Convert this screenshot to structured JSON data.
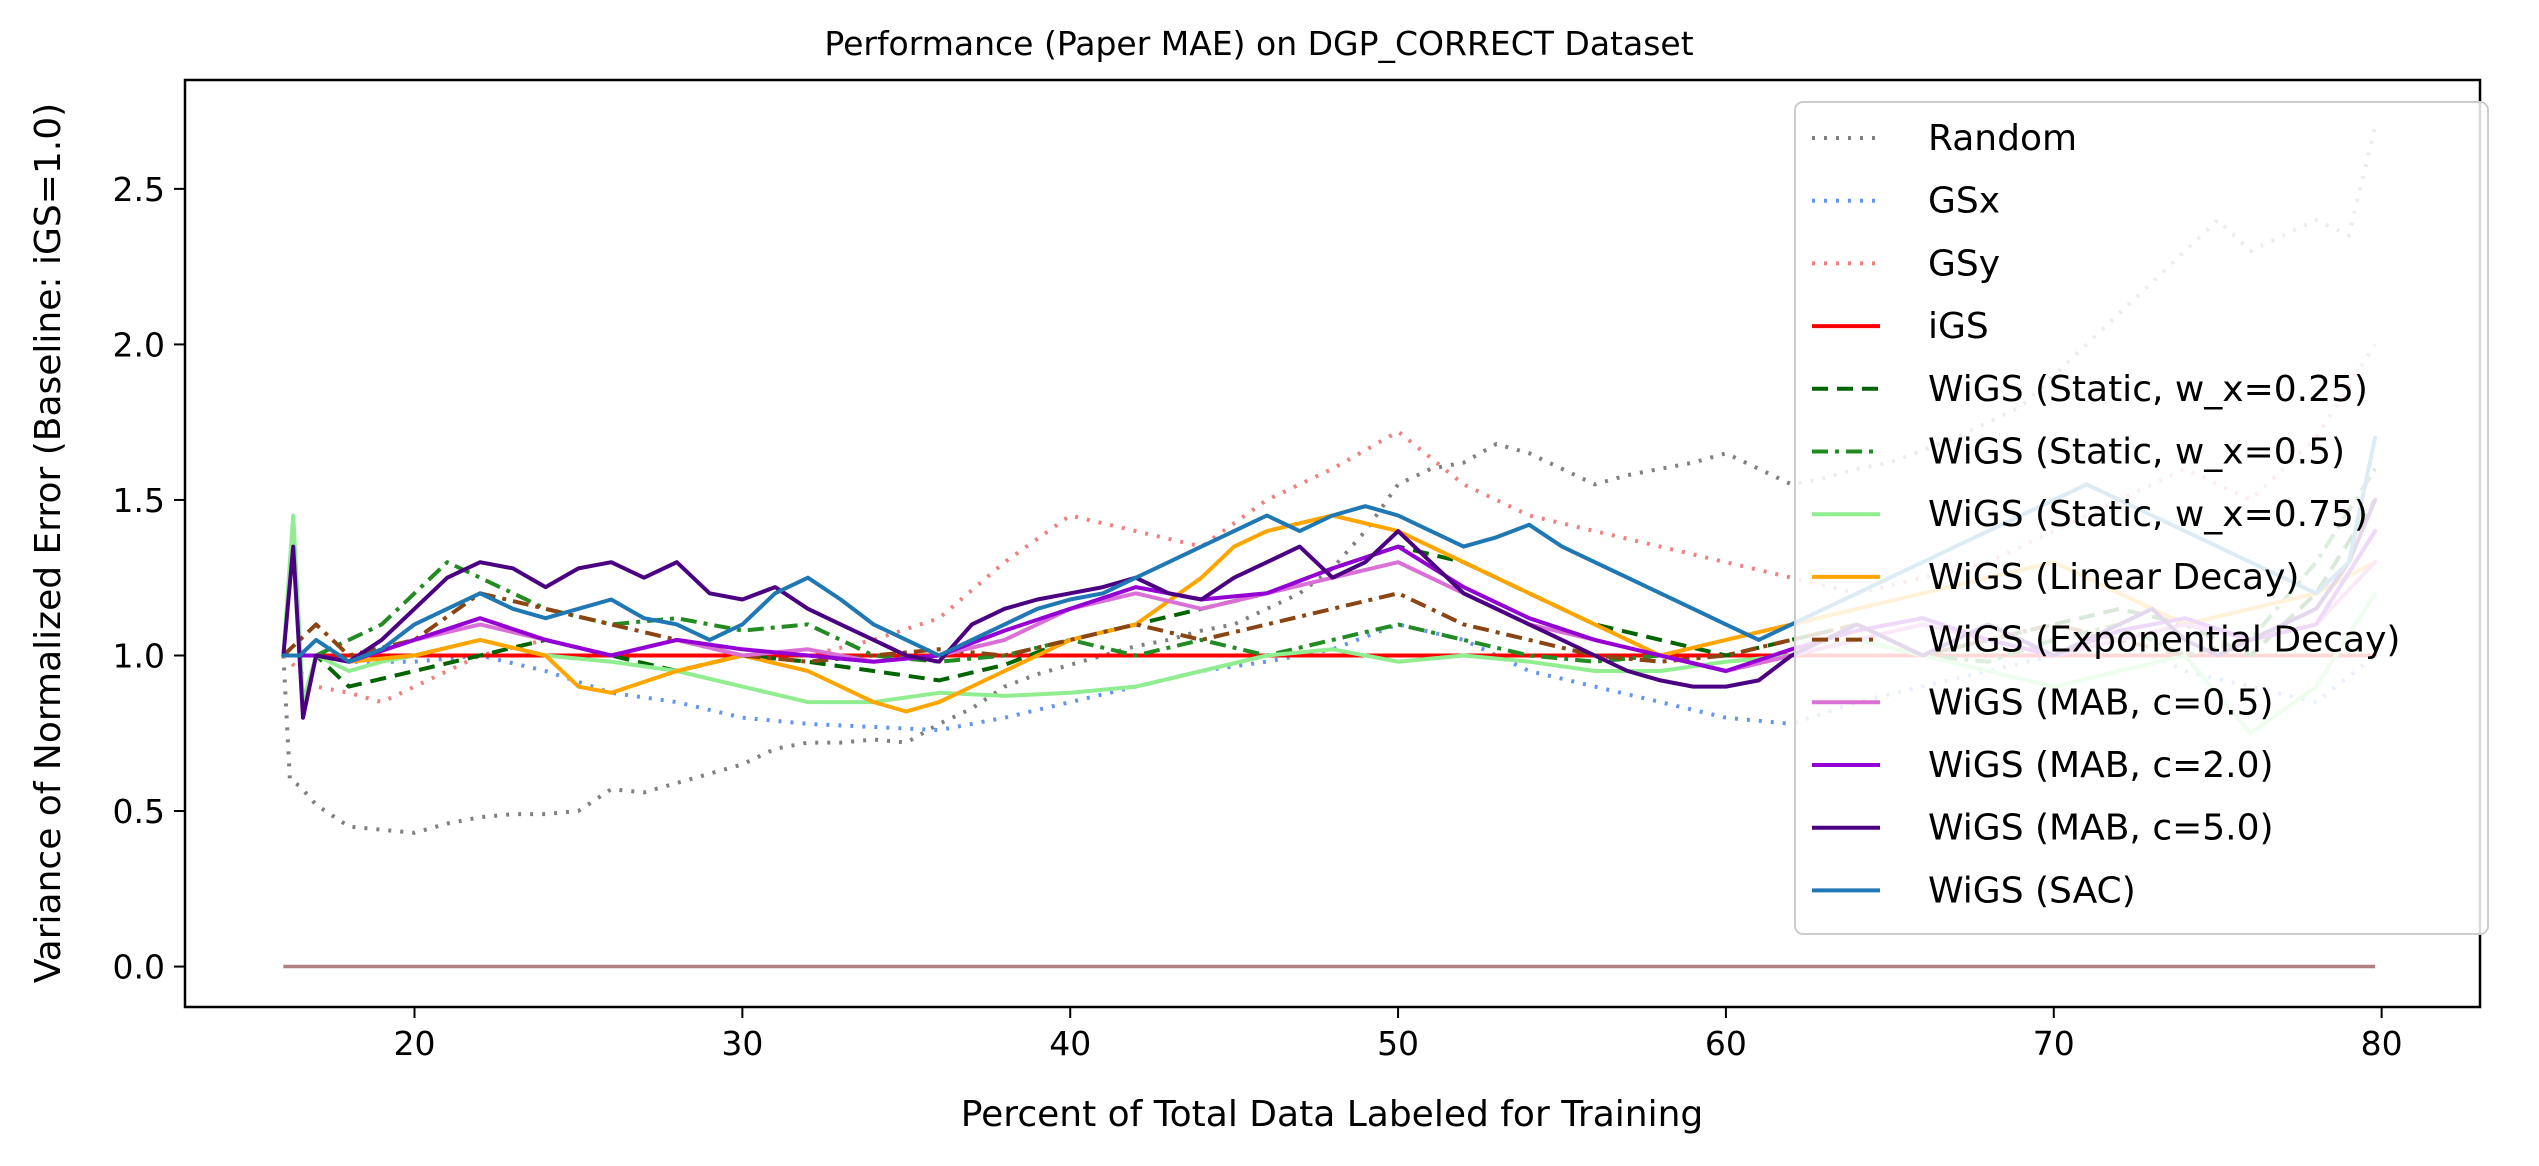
{
  "chart_data": {
    "type": "line",
    "title": "Performance (Paper MAE) on DGP_CORRECT Dataset",
    "xlabel": "Percent of Total Data Labeled for Training",
    "ylabel": "Variance of Normalized Error (Baseline: iGS=1.0)",
    "xlim": [
      13,
      83
    ],
    "ylim": [
      -0.13,
      2.85
    ],
    "xticks": [
      20,
      30,
      40,
      50,
      60,
      70,
      80
    ],
    "yticks": [
      0.0,
      0.5,
      1.0,
      1.5,
      2.0,
      2.5
    ],
    "xtick_labels": [
      "20",
      "30",
      "40",
      "50",
      "60",
      "70",
      "80"
    ],
    "ytick_labels": [
      "0.0",
      "0.5",
      "1.0",
      "1.5",
      "2.0",
      "2.5"
    ],
    "grid": false,
    "legend_position": "upper right",
    "series": [
      {
        "name": "Random",
        "color": "#808080",
        "dash": "dotted",
        "x": [
          16,
          16.2,
          16.5,
          17,
          18,
          19,
          20,
          21,
          22,
          23,
          24,
          25,
          26,
          27,
          28,
          29,
          30,
          31,
          32,
          33,
          34,
          35,
          36,
          37,
          38,
          39,
          40,
          41,
          42,
          43,
          44,
          45,
          46,
          47,
          48,
          49,
          50,
          51,
          52,
          53,
          54,
          55,
          56,
          57,
          58,
          59,
          60,
          61,
          62,
          63,
          64,
          65,
          66,
          67,
          68,
          69,
          70,
          71,
          72,
          73,
          74,
          75,
          76,
          77,
          78,
          79,
          79.8
        ],
        "y": [
          1.0,
          0.6,
          0.58,
          0.52,
          0.45,
          0.44,
          0.43,
          0.46,
          0.48,
          0.49,
          0.49,
          0.5,
          0.57,
          0.56,
          0.59,
          0.62,
          0.65,
          0.7,
          0.72,
          0.72,
          0.73,
          0.72,
          0.78,
          0.83,
          0.9,
          0.94,
          0.97,
          1.0,
          1.03,
          1.05,
          1.08,
          1.1,
          1.15,
          1.2,
          1.28,
          1.4,
          1.55,
          1.6,
          1.62,
          1.68,
          1.65,
          1.6,
          1.55,
          1.58,
          1.6,
          1.62,
          1.65,
          1.6,
          1.55,
          1.57,
          1.6,
          1.62,
          1.66,
          1.7,
          1.75,
          1.8,
          1.9,
          2.0,
          2.1,
          2.2,
          2.3,
          2.4,
          2.3,
          2.35,
          2.4,
          2.35,
          2.7
        ]
      },
      {
        "name": "GSx",
        "color": "#6495ed",
        "dash": "dotted",
        "x": [
          16,
          17,
          18,
          20,
          22,
          24,
          26,
          28,
          30,
          32,
          34,
          36,
          38,
          40,
          42,
          44,
          46,
          48,
          50,
          52,
          54,
          56,
          58,
          60,
          62,
          64,
          66,
          68,
          70,
          72,
          74,
          76,
          78,
          79.8
        ],
        "y": [
          1.0,
          1.0,
          0.98,
          0.98,
          1.0,
          0.95,
          0.88,
          0.85,
          0.8,
          0.78,
          0.77,
          0.76,
          0.8,
          0.85,
          0.9,
          0.95,
          0.98,
          1.02,
          1.1,
          1.05,
          0.95,
          0.9,
          0.85,
          0.8,
          0.78,
          0.85,
          0.9,
          0.95,
          1.0,
          1.05,
          0.95,
          0.9,
          0.85,
          1.0
        ]
      },
      {
        "name": "GSy",
        "color": "#f08080",
        "dash": "dotted",
        "x": [
          16,
          17,
          18,
          19,
          20,
          22,
          24,
          26,
          28,
          30,
          32,
          34,
          36,
          38,
          40,
          42,
          44,
          46,
          48,
          50,
          52,
          54,
          56,
          58,
          60,
          62,
          64,
          66,
          68,
          70,
          72,
          74,
          76,
          78,
          79.8
        ],
        "y": [
          1.0,
          0.9,
          0.88,
          0.85,
          0.9,
          1.0,
          1.05,
          1.0,
          1.05,
          1.02,
          1.0,
          1.05,
          1.12,
          1.3,
          1.45,
          1.4,
          1.35,
          1.5,
          1.6,
          1.72,
          1.55,
          1.45,
          1.4,
          1.35,
          1.3,
          1.25,
          1.2,
          1.25,
          1.3,
          1.4,
          1.5,
          1.6,
          1.5,
          1.7,
          2.0
        ]
      },
      {
        "name": "iGS",
        "color": "#ff0000",
        "dash": "solid",
        "x": [
          16,
          79.8
        ],
        "y": [
          1.0,
          1.0
        ]
      },
      {
        "name": "WiGS (Static, w_x=0.25)",
        "color": "#006400",
        "dash": "dashed",
        "x": [
          16,
          17,
          18,
          20,
          22,
          24,
          26,
          28,
          30,
          32,
          34,
          36,
          38,
          40,
          42,
          44,
          46,
          48,
          50,
          52,
          54,
          56,
          58,
          60,
          62,
          64,
          66,
          68,
          70,
          72,
          74,
          76,
          78,
          79.8
        ],
        "y": [
          1.0,
          1.0,
          0.9,
          0.95,
          1.0,
          1.05,
          1.0,
          0.95,
          1.0,
          0.98,
          0.95,
          0.92,
          0.97,
          1.05,
          1.1,
          1.15,
          1.2,
          1.28,
          1.35,
          1.3,
          1.2,
          1.1,
          1.05,
          1.0,
          1.05,
          1.1,
          1.0,
          1.05,
          1.1,
          1.15,
          1.1,
          1.0,
          1.2,
          1.5
        ]
      },
      {
        "name": "WiGS (Static, w_x=0.5)",
        "color": "#228b22",
        "dash": "dashdot",
        "x": [
          16,
          17,
          18,
          19,
          20,
          21,
          22,
          24,
          26,
          28,
          30,
          32,
          34,
          36,
          38,
          40,
          42,
          44,
          46,
          48,
          50,
          52,
          54,
          56,
          58,
          60,
          62,
          64,
          66,
          68,
          70,
          72,
          74,
          76,
          78,
          79.8
        ],
        "y": [
          1.0,
          1.0,
          1.05,
          1.1,
          1.2,
          1.3,
          1.25,
          1.15,
          1.1,
          1.12,
          1.08,
          1.1,
          1.0,
          0.98,
          1.0,
          1.05,
          1.0,
          1.05,
          1.0,
          1.05,
          1.1,
          1.05,
          1.0,
          0.98,
          1.0,
          0.95,
          1.0,
          1.05,
          1.0,
          0.98,
          1.05,
          1.1,
          1.0,
          1.05,
          1.3,
          1.6
        ]
      },
      {
        "name": "WiGS (Static, w_x=0.75)",
        "color": "#90ee90",
        "dash": "solid",
        "x": [
          16,
          16.3,
          16.6,
          17,
          18,
          19,
          20,
          22,
          24,
          26,
          28,
          30,
          32,
          34,
          36,
          38,
          40,
          42,
          44,
          46,
          48,
          50,
          52,
          54,
          56,
          58,
          60,
          62,
          64,
          66,
          68,
          70,
          72,
          74,
          76,
          78,
          79.8
        ],
        "y": [
          1.0,
          1.45,
          0.85,
          1.0,
          0.95,
          0.98,
          1.0,
          1.05,
          1.0,
          0.98,
          0.95,
          0.9,
          0.85,
          0.85,
          0.88,
          0.87,
          0.88,
          0.9,
          0.95,
          1.0,
          1.02,
          0.98,
          1.0,
          0.98,
          0.95,
          0.95,
          0.98,
          1.0,
          1.05,
          1.0,
          0.95,
          0.9,
          0.95,
          1.0,
          0.75,
          0.9,
          1.2
        ]
      },
      {
        "name": "WiGS (Linear Decay)",
        "color": "#ffa500",
        "dash": "solid",
        "x": [
          16,
          17,
          18,
          20,
          22,
          24,
          25,
          26,
          28,
          30,
          32,
          34,
          35,
          36,
          38,
          40,
          42,
          44,
          45,
          46,
          48,
          50,
          52,
          54,
          56,
          58,
          60,
          62,
          64,
          66,
          68,
          70,
          72,
          74,
          76,
          78,
          79.8
        ],
        "y": [
          1.0,
          1.0,
          0.98,
          1.0,
          1.05,
          1.0,
          0.9,
          0.88,
          0.95,
          1.0,
          0.95,
          0.85,
          0.82,
          0.85,
          0.95,
          1.05,
          1.1,
          1.25,
          1.35,
          1.4,
          1.45,
          1.4,
          1.3,
          1.2,
          1.1,
          1.0,
          1.05,
          1.1,
          1.15,
          1.2,
          1.25,
          1.3,
          1.2,
          1.1,
          1.15,
          1.2,
          1.3
        ]
      },
      {
        "name": "WiGS (Exponential Decay)",
        "color": "#8b4513",
        "dash": "dashdot",
        "x": [
          16,
          17,
          18,
          20,
          22,
          24,
          26,
          28,
          30,
          32,
          34,
          36,
          38,
          40,
          42,
          44,
          46,
          48,
          50,
          52,
          54,
          56,
          58,
          60,
          62,
          64,
          66,
          68,
          70,
          72,
          74,
          76,
          78,
          79.8
        ],
        "y": [
          1.0,
          1.1,
          1.0,
          1.05,
          1.2,
          1.15,
          1.1,
          1.05,
          1.0,
          0.98,
          1.0,
          1.02,
          1.0,
          1.05,
          1.1,
          1.05,
          1.1,
          1.15,
          1.2,
          1.1,
          1.05,
          1.0,
          0.98,
          1.0,
          1.05,
          1.1,
          1.0,
          1.05,
          1.1,
          1.05,
          1.0,
          1.05,
          1.1,
          1.4
        ]
      },
      {
        "name": "WiGS (MAB, c=0.5)",
        "color": "#da70d6",
        "dash": "solid",
        "x": [
          16,
          17,
          18,
          20,
          22,
          24,
          26,
          28,
          30,
          32,
          34,
          36,
          38,
          40,
          42,
          44,
          46,
          48,
          50,
          52,
          54,
          56,
          58,
          60,
          62,
          64,
          66,
          68,
          70,
          72,
          74,
          76,
          78,
          79.8
        ],
        "y": [
          1.0,
          1.0,
          0.98,
          1.05,
          1.1,
          1.05,
          1.0,
          1.05,
          1.0,
          1.02,
          0.98,
          1.0,
          1.05,
          1.15,
          1.2,
          1.15,
          1.2,
          1.25,
          1.3,
          1.2,
          1.1,
          1.05,
          1.0,
          0.95,
          1.0,
          1.05,
          1.1,
          1.05,
          1.0,
          1.05,
          1.1,
          1.05,
          1.1,
          1.3
        ]
      },
      {
        "name": "WiGS (MAB, c=2.0)",
        "color": "#9400d3",
        "dash": "solid",
        "x": [
          16,
          17,
          18,
          20,
          22,
          24,
          26,
          28,
          30,
          32,
          34,
          36,
          38,
          40,
          42,
          44,
          46,
          48,
          50,
          52,
          54,
          56,
          58,
          60,
          62,
          64,
          66,
          68,
          70,
          72,
          74,
          76,
          78,
          79.8
        ],
        "y": [
          1.0,
          1.0,
          0.98,
          1.05,
          1.12,
          1.05,
          1.0,
          1.05,
          1.02,
          1.0,
          0.98,
          1.0,
          1.08,
          1.15,
          1.22,
          1.18,
          1.2,
          1.28,
          1.35,
          1.22,
          1.12,
          1.05,
          1.0,
          0.95,
          1.02,
          1.08,
          1.12,
          1.05,
          1.0,
          1.08,
          1.12,
          1.05,
          1.1,
          1.4
        ]
      },
      {
        "name": "WiGS (MAB, c=5.0)",
        "color": "#4b0082",
        "dash": "solid",
        "x": [
          16,
          16.3,
          16.6,
          17,
          18,
          19,
          20,
          21,
          22,
          23,
          24,
          25,
          26,
          27,
          28,
          29,
          30,
          31,
          32,
          33,
          34,
          35,
          36,
          37,
          38,
          39,
          40,
          41,
          42,
          43,
          44,
          45,
          46,
          47,
          48,
          49,
          50,
          51,
          52,
          53,
          54,
          55,
          56,
          57,
          58,
          59,
          60,
          61,
          62,
          63,
          64,
          65,
          66,
          67,
          68,
          69,
          70,
          71,
          72,
          73,
          74,
          75,
          76,
          77,
          78,
          79,
          79.8
        ],
        "y": [
          1.0,
          1.35,
          0.8,
          1.0,
          0.98,
          1.05,
          1.15,
          1.25,
          1.3,
          1.28,
          1.22,
          1.28,
          1.3,
          1.25,
          1.3,
          1.2,
          1.18,
          1.22,
          1.15,
          1.1,
          1.05,
          1.0,
          0.98,
          1.1,
          1.15,
          1.18,
          1.2,
          1.22,
          1.25,
          1.2,
          1.18,
          1.25,
          1.3,
          1.35,
          1.25,
          1.3,
          1.4,
          1.3,
          1.2,
          1.15,
          1.1,
          1.05,
          1.0,
          0.95,
          0.92,
          0.9,
          0.9,
          0.92,
          1.0,
          1.05,
          1.1,
          1.05,
          1.0,
          1.05,
          1.1,
          1.05,
          1.0,
          1.05,
          1.1,
          1.15,
          1.05,
          1.0,
          1.05,
          1.1,
          1.15,
          1.3,
          1.5
        ]
      },
      {
        "name": "WiGS (SAC)",
        "color": "#1f77b4",
        "dash": "solid",
        "x": [
          16,
          16.5,
          17,
          18,
          19,
          20,
          21,
          22,
          23,
          24,
          25,
          26,
          27,
          28,
          29,
          30,
          31,
          32,
          33,
          34,
          35,
          36,
          37,
          38,
          39,
          40,
          41,
          42,
          43,
          44,
          45,
          46,
          47,
          48,
          49,
          50,
          51,
          52,
          53,
          54,
          55,
          56,
          57,
          58,
          59,
          60,
          61,
          62,
          63,
          64,
          65,
          66,
          67,
          68,
          69,
          70,
          71,
          72,
          73,
          74,
          75,
          76,
          77,
          78,
          79,
          79.8
        ],
        "y": [
          1.0,
          1.0,
          1.05,
          0.98,
          1.02,
          1.1,
          1.15,
          1.2,
          1.15,
          1.12,
          1.15,
          1.18,
          1.12,
          1.1,
          1.05,
          1.1,
          1.2,
          1.25,
          1.18,
          1.1,
          1.05,
          1.0,
          1.05,
          1.1,
          1.15,
          1.18,
          1.2,
          1.25,
          1.3,
          1.35,
          1.4,
          1.45,
          1.4,
          1.45,
          1.48,
          1.45,
          1.4,
          1.35,
          1.38,
          1.42,
          1.35,
          1.3,
          1.25,
          1.2,
          1.15,
          1.1,
          1.05,
          1.1,
          1.15,
          1.2,
          1.25,
          1.3,
          1.35,
          1.4,
          1.45,
          1.5,
          1.55,
          1.5,
          1.45,
          1.4,
          1.35,
          1.3,
          1.25,
          1.2,
          1.3,
          1.7
        ]
      }
    ],
    "zero_line": {
      "color": "#b08080",
      "x": [
        16,
        79.8
      ],
      "y": [
        0.0,
        0.0
      ]
    }
  }
}
